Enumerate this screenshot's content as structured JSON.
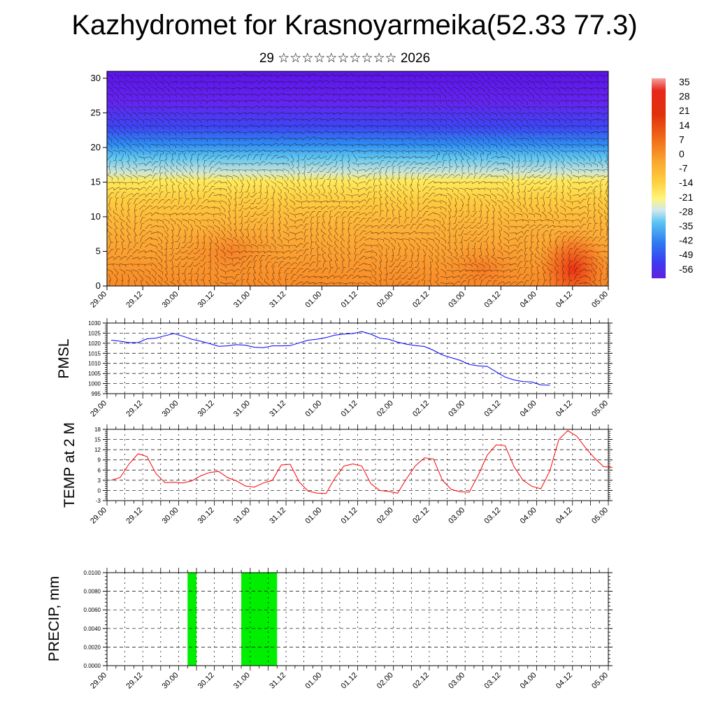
{
  "page": {
    "title": "Kazhydromet for Krasnoyarmeika(52.33 77.3)",
    "subtitle": "29 ☆☆☆☆☆☆☆☆☆☆ 2026"
  },
  "colors": {
    "pmsl_line": "#0000ff",
    "temp_line": "#ff0000",
    "precip_bar": "#00ee00",
    "grid": "#000000"
  },
  "chart_data": [
    {
      "type": "heatmap",
      "name": "cross-section",
      "xlabels": [
        "29.00",
        "29.12",
        "30.00",
        "30.12",
        "31.00",
        "31.12",
        "01.00",
        "01.12",
        "02.00",
        "02.12",
        "03.00",
        "03.12",
        "04.00",
        "04.12",
        "05.00"
      ],
      "ylim": [
        0,
        31
      ],
      "yticks": [
        0,
        5,
        10,
        15,
        20,
        25,
        30
      ],
      "colorbar_labels": [
        "35",
        "28",
        "21",
        "14",
        "7",
        "0",
        "-7",
        "-14",
        "-21",
        "-28",
        "-35",
        "-42",
        "-49",
        "-56"
      ],
      "overlay": "wind barbs"
    },
    {
      "type": "line",
      "name": "pmsl",
      "ylabel": "PMSL",
      "ylim": [
        995,
        1030
      ],
      "yticks": [
        "995",
        "1000",
        "1005",
        "1010",
        "1015",
        "1020",
        "1025",
        "1030"
      ],
      "xlabels": [
        "29.00",
        "29.12",
        "30.00",
        "30.12",
        "31.00",
        "31.12",
        "01.00",
        "01.12",
        "02.00",
        "02.12",
        "03.00",
        "03.12",
        "04.00",
        "04.12",
        "05.00"
      ],
      "x_step_hours": 3,
      "values": [
        1021.5,
        1021.0,
        1020.3,
        1020.3,
        1022.2,
        1022.5,
        1023.7,
        1024.8,
        1023.5,
        1022.0,
        1021.0,
        1019.8,
        1018.5,
        1018.7,
        1019.3,
        1019.0,
        1018.0,
        1017.8,
        1018.7,
        1018.7,
        1018.8,
        1020.2,
        1021.5,
        1022.0,
        1022.8,
        1024.0,
        1024.5,
        1024.8,
        1025.8,
        1024.5,
        1022.5,
        1022.0,
        1020.5,
        1019.5,
        1018.8,
        1018.4,
        1016.5,
        1014.2,
        1012.8,
        1011.5,
        1009.5,
        1008.8,
        1008.5,
        1005.8,
        1003.2,
        1001.8,
        1001.0,
        1000.8,
        999.3,
        999.2
      ]
    },
    {
      "type": "line",
      "name": "temp",
      "ylabel": "TEMP at 2 M",
      "ylim": [
        -3,
        18
      ],
      "yticks": [
        "-3",
        "0",
        "3",
        "6",
        "9",
        "12",
        "15",
        "18"
      ],
      "xlabels": [
        "29.00",
        "29.12",
        "30.00",
        "30.12",
        "31.00",
        "31.12",
        "01.00",
        "01.12",
        "02.00",
        "02.12",
        "03.00",
        "03.12",
        "04.00",
        "04.12",
        "05.00"
      ],
      "x_step_hours": 3,
      "values": [
        3.0,
        3.8,
        7.8,
        10.8,
        10.0,
        5.0,
        2.3,
        2.4,
        2.2,
        2.8,
        4.3,
        5.3,
        5.6,
        3.8,
        2.8,
        1.3,
        1.0,
        2.2,
        3.0,
        7.5,
        7.7,
        2.5,
        -0.2,
        -0.8,
        -0.9,
        3.7,
        7.2,
        7.8,
        7.2,
        2.0,
        0.0,
        -0.3,
        -0.8,
        3.5,
        7.3,
        9.6,
        9.3,
        3.0,
        0.3,
        -0.4,
        -0.5,
        4.5,
        10.4,
        13.4,
        13.2,
        7.0,
        3.0,
        1.2,
        0.5,
        5.8,
        15.0,
        17.6,
        16.0,
        12.5,
        9.5,
        7.0,
        6.8
      ]
    },
    {
      "type": "bar",
      "name": "precip",
      "ylabel": "PRECIP, mm",
      "ylim": [
        0,
        0.01
      ],
      "yticks": [
        "0.0000",
        "0.0020",
        "0.0040",
        "0.0060",
        "0.0080",
        "0.0100"
      ],
      "xlabels": [
        "29.00",
        "29.12",
        "30.00",
        "30.12",
        "31.00",
        "31.12",
        "01.00",
        "01.12",
        "02.00",
        "02.12",
        "03.00",
        "03.12",
        "04.00",
        "04.12",
        "05.00"
      ],
      "bars": [
        {
          "start_hour": 27,
          "end_hour": 30,
          "value": 0.01
        },
        {
          "start_hour": 45,
          "end_hour": 57,
          "value": 0.01
        }
      ]
    }
  ]
}
